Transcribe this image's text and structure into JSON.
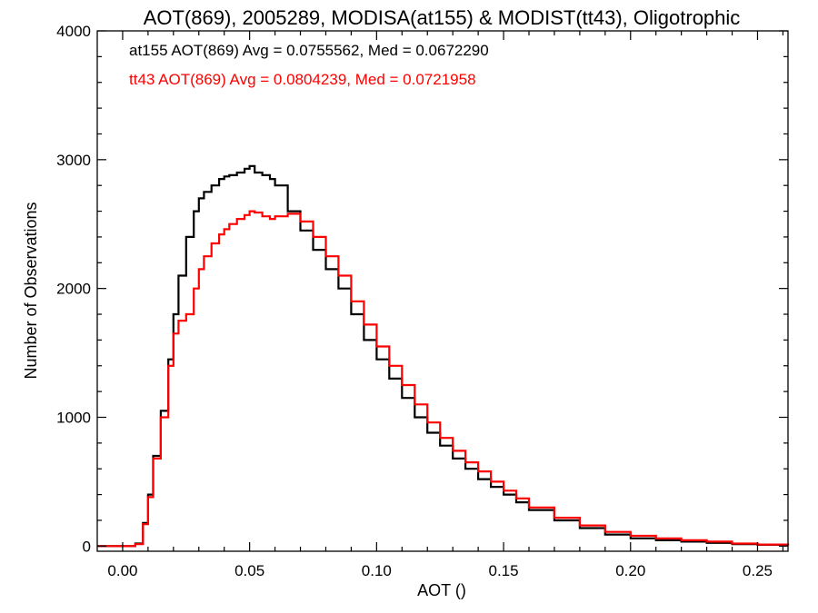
{
  "chart_data": {
    "type": "line",
    "title": "AOT(869), 2005289, MODISA(at155) & MODIST(tt43), Oligotrophic",
    "xlabel": "AOT ()",
    "ylabel": "Number of Observations",
    "xlim": [
      -0.01,
      0.262
    ],
    "ylim": [
      -40,
      4000
    ],
    "x_ticks": [
      0.0,
      0.05,
      0.1,
      0.15,
      0.2,
      0.25
    ],
    "x_tick_labels": [
      "0.00",
      "0.05",
      "0.10",
      "0.15",
      "0.20",
      "0.25"
    ],
    "y_ticks": [
      0,
      1000,
      2000,
      3000,
      4000
    ],
    "y_tick_labels": [
      "0",
      "1000",
      "2000",
      "3000",
      "4000"
    ],
    "grid": false,
    "step": true,
    "annotations": [
      {
        "text": "at155 AOT(869) Avg = 0.0755562, Med = 0.0672290",
        "color": "#000000"
      },
      {
        "text": "tt43 AOT(869) Avg = 0.0804239, Med = 0.0721958",
        "color": "#ff0000"
      }
    ],
    "series": [
      {
        "color": "#000000",
        "x": [
          -0.01,
          0.0,
          0.005,
          0.008,
          0.01,
          0.012,
          0.015,
          0.018,
          0.02,
          0.022,
          0.025,
          0.028,
          0.03,
          0.032,
          0.035,
          0.038,
          0.04,
          0.042,
          0.045,
          0.048,
          0.05,
          0.052,
          0.055,
          0.058,
          0.06,
          0.065,
          0.07,
          0.075,
          0.08,
          0.085,
          0.09,
          0.095,
          0.1,
          0.105,
          0.11,
          0.115,
          0.12,
          0.125,
          0.13,
          0.135,
          0.14,
          0.145,
          0.15,
          0.155,
          0.16,
          0.17,
          0.18,
          0.19,
          0.2,
          0.21,
          0.22,
          0.23,
          0.24,
          0.25,
          0.262
        ],
        "y": [
          0,
          0,
          20,
          180,
          400,
          700,
          1050,
          1450,
          1800,
          2100,
          2400,
          2600,
          2700,
          2750,
          2800,
          2850,
          2870,
          2880,
          2900,
          2930,
          2950,
          2900,
          2880,
          2850,
          2800,
          2600,
          2450,
          2300,
          2150,
          2000,
          1800,
          1600,
          1450,
          1300,
          1150,
          1000,
          880,
          780,
          680,
          600,
          520,
          460,
          400,
          340,
          280,
          200,
          140,
          90,
          60,
          45,
          35,
          25,
          15,
          10,
          5
        ]
      },
      {
        "color": "#ff0000",
        "x": [
          -0.01,
          0.0,
          0.005,
          0.008,
          0.01,
          0.012,
          0.015,
          0.018,
          0.02,
          0.022,
          0.025,
          0.028,
          0.03,
          0.032,
          0.035,
          0.038,
          0.04,
          0.042,
          0.045,
          0.048,
          0.05,
          0.052,
          0.055,
          0.058,
          0.06,
          0.065,
          0.07,
          0.075,
          0.08,
          0.085,
          0.09,
          0.095,
          0.1,
          0.105,
          0.11,
          0.115,
          0.12,
          0.125,
          0.13,
          0.135,
          0.14,
          0.145,
          0.15,
          0.155,
          0.16,
          0.17,
          0.18,
          0.19,
          0.2,
          0.21,
          0.22,
          0.23,
          0.24,
          0.25,
          0.262
        ],
        "y": [
          0,
          0,
          15,
          170,
          380,
          680,
          1000,
          1400,
          1650,
          1750,
          1800,
          2000,
          2150,
          2250,
          2350,
          2420,
          2460,
          2500,
          2540,
          2570,
          2600,
          2590,
          2560,
          2540,
          2560,
          2580,
          2520,
          2400,
          2250,
          2100,
          1900,
          1720,
          1550,
          1400,
          1250,
          1100,
          960,
          840,
          740,
          650,
          580,
          500,
          430,
          370,
          300,
          220,
          160,
          110,
          80,
          60,
          45,
          35,
          20,
          12,
          6
        ]
      }
    ]
  }
}
